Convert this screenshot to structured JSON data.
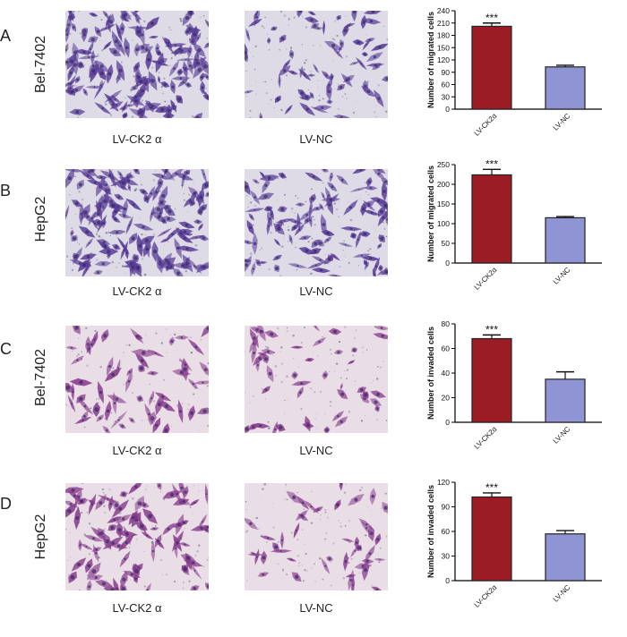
{
  "panels": [
    {
      "letter": "A",
      "row_label": "Bel-7402",
      "images": [
        {
          "label": "LV-CK2 α",
          "stain": "dense-violet"
        },
        {
          "label": "LV-NC",
          "stain": "sparse-violet"
        }
      ]
    },
    {
      "letter": "B",
      "row_label": "HepG2",
      "images": [
        {
          "label": "LV-CK2 α",
          "stain": "dense-violet"
        },
        {
          "label": "LV-NC",
          "stain": "medium-violet"
        }
      ]
    },
    {
      "letter": "C",
      "row_label": "Bel-7402",
      "images": [
        {
          "label": "LV-CK2 α",
          "stain": "pink-medium"
        },
        {
          "label": "LV-NC",
          "stain": "pink-sparse"
        }
      ]
    },
    {
      "letter": "D",
      "row_label": "HepG2",
      "images": [
        {
          "label": "LV-CK2 α",
          "stain": "pink-dense"
        },
        {
          "label": "LV-NC",
          "stain": "pink-sparse"
        }
      ]
    }
  ],
  "colors": {
    "bar_ck2": "#9b1c24",
    "bar_nc": "#8f94d4",
    "violet_bg": "#dedbe6",
    "violet_cell": "#5a3f98",
    "pink_bg": "#e9dde6",
    "pink_cell": "#8a3f8e"
  },
  "chart_data": [
    {
      "type": "bar",
      "categories": [
        "LV-CK2α",
        "LV-NC"
      ],
      "values": [
        202,
        103
      ],
      "errors": [
        8,
        4
      ],
      "significance": [
        "***",
        ""
      ],
      "ylabel": "Number of migrated cells",
      "ylim": [
        0,
        240
      ],
      "yticks": [
        0,
        30,
        60,
        90,
        120,
        150,
        180,
        210,
        240
      ]
    },
    {
      "type": "bar",
      "categories": [
        "LV-CK2α",
        "LV-NC"
      ],
      "values": [
        224,
        115
      ],
      "errors": [
        14,
        3
      ],
      "significance": [
        "***",
        ""
      ],
      "ylabel": "Number of migrated cells",
      "ylim": [
        0,
        250
      ],
      "yticks": [
        0,
        50,
        100,
        150,
        200,
        250
      ]
    },
    {
      "type": "bar",
      "categories": [
        "LV-CK2α",
        "LV-NC"
      ],
      "values": [
        68,
        35
      ],
      "errors": [
        3,
        6
      ],
      "significance": [
        "***",
        ""
      ],
      "ylabel": "Number of invaded cells",
      "ylim": [
        0,
        80
      ],
      "yticks": [
        0,
        20,
        40,
        60,
        80
      ]
    },
    {
      "type": "bar",
      "categories": [
        "LV-CK2α",
        "LV-NC"
      ],
      "values": [
        102,
        57
      ],
      "errors": [
        5,
        4
      ],
      "significance": [
        "***",
        ""
      ],
      "ylabel": "Number of invaded cells",
      "ylim": [
        0,
        120
      ],
      "yticks": [
        0,
        30,
        60,
        90,
        120
      ]
    }
  ]
}
